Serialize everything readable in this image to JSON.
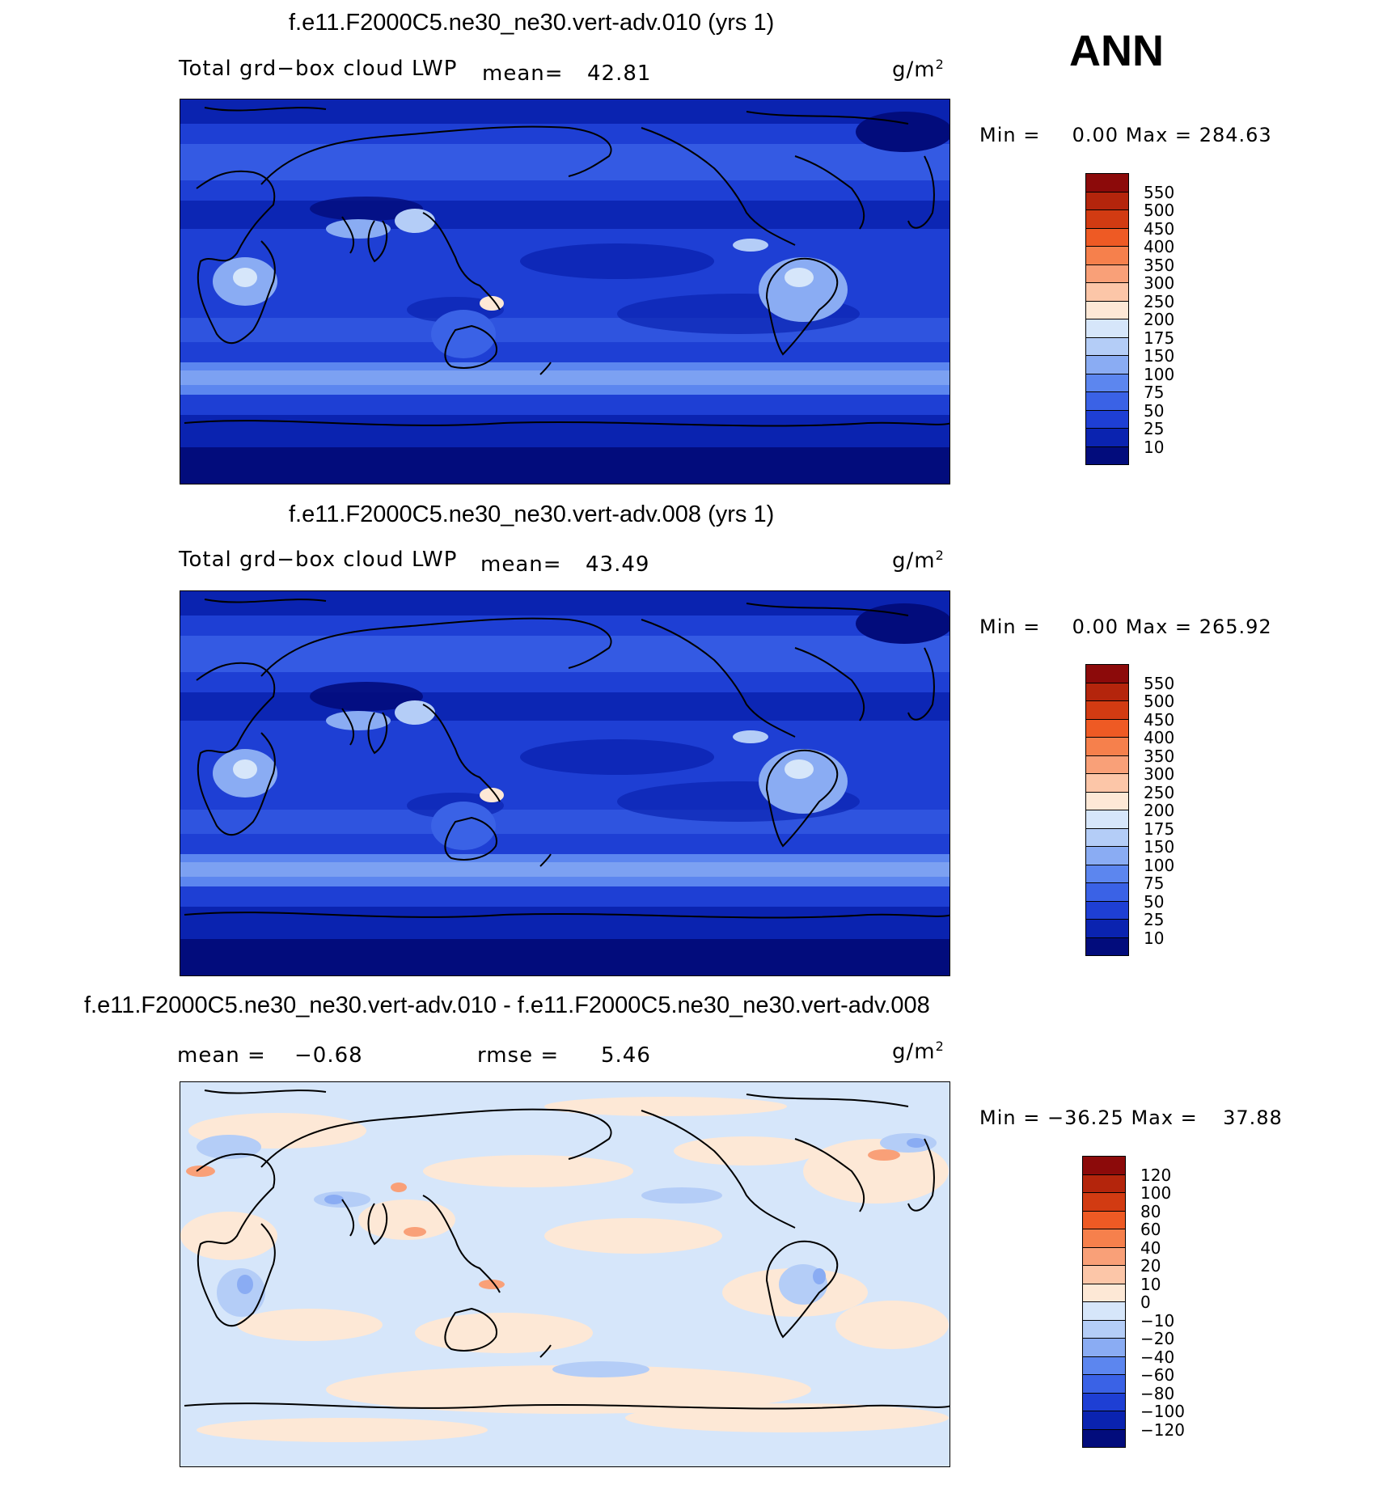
{
  "season_label": "ANN",
  "panels": [
    {
      "title": "f.e11.F2000C5.ne30_ne30.vert-adv.010 (yrs 1)",
      "variable": "Total grd−box cloud LWP",
      "mean_label": "mean=",
      "mean_value": "42.81",
      "units": "g/m",
      "units_exp": "2",
      "min_label": "Min =",
      "min_value": "0.00",
      "max_label": "Max =",
      "max_value": "284.63",
      "colorbar": {
        "levels": [
          "550",
          "500",
          "450",
          "400",
          "350",
          "300",
          "250",
          "200",
          "175",
          "150",
          "100",
          "75",
          "50",
          "25",
          "10"
        ],
        "colors": [
          "#8c0a0a",
          "#b4250c",
          "#d23b12",
          "#ee5a24",
          "#f6804c",
          "#f9a078",
          "#fcc6a8",
          "#fde8d6",
          "#d6e6fa",
          "#b4cdf7",
          "#8aacf3",
          "#5c86ef",
          "#3a62e6",
          "#1e3fd4",
          "#0a23b0",
          "#020c7c"
        ]
      }
    },
    {
      "title": "f.e11.F2000C5.ne30_ne30.vert-adv.008 (yrs 1)",
      "variable": "Total grd−box cloud LWP",
      "mean_label": "mean=",
      "mean_value": "43.49",
      "units": "g/m",
      "units_exp": "2",
      "min_label": "Min =",
      "min_value": "0.00",
      "max_label": "Max =",
      "max_value": "265.92",
      "colorbar": {
        "levels": [
          "550",
          "500",
          "450",
          "400",
          "350",
          "300",
          "250",
          "200",
          "175",
          "150",
          "100",
          "75",
          "50",
          "25",
          "10"
        ],
        "colors": [
          "#8c0a0a",
          "#b4250c",
          "#d23b12",
          "#ee5a24",
          "#f6804c",
          "#f9a078",
          "#fcc6a8",
          "#fde8d6",
          "#d6e6fa",
          "#b4cdf7",
          "#8aacf3",
          "#5c86ef",
          "#3a62e6",
          "#1e3fd4",
          "#0a23b0",
          "#020c7c"
        ]
      }
    },
    {
      "title": "f.e11.F2000C5.ne30_ne30.vert-adv.010 - f.e11.F2000C5.ne30_ne30.vert-adv.008",
      "mean_label": "mean =",
      "mean_value": "−0.68",
      "rmse_label": "rmse =",
      "rmse_value": "5.46",
      "units": "g/m",
      "units_exp": "2",
      "min_label": "Min =",
      "min_value": "−36.25",
      "max_label": "Max =",
      "max_value": "37.88",
      "colorbar": {
        "levels": [
          "120",
          "100",
          "80",
          "60",
          "40",
          "20",
          "10",
          "0",
          "−10",
          "−20",
          "−40",
          "−60",
          "−80",
          "−100",
          "−120"
        ],
        "colors": [
          "#8c0a0a",
          "#b4250c",
          "#d23b12",
          "#ee5a24",
          "#f6804c",
          "#f9a078",
          "#fcc6a8",
          "#fde8d6",
          "#d6e6fa",
          "#b4cdf7",
          "#8aacf3",
          "#5c86ef",
          "#3a62e6",
          "#1e3fd4",
          "#0a23b0",
          "#020c7c"
        ]
      }
    }
  ]
}
